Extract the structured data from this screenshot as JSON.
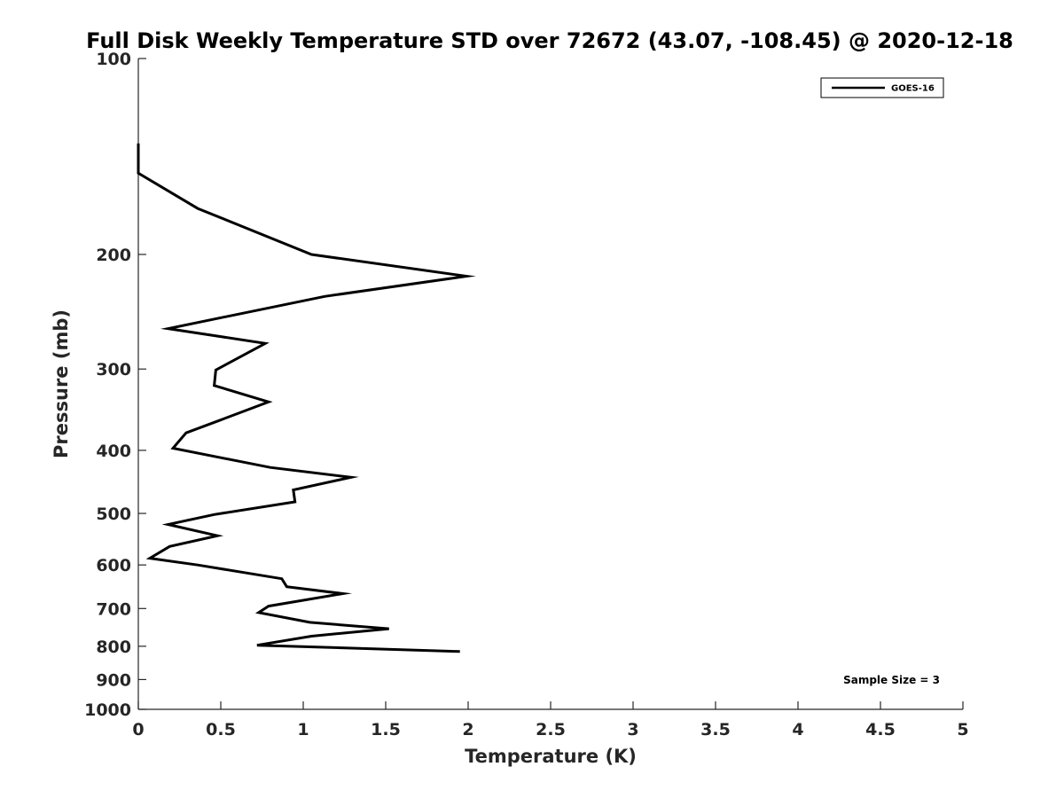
{
  "chart_data": {
    "type": "line",
    "title": "Full Disk Weekly Temperature STD over 72672 (43.07, -108.45) @ 2020-12-18",
    "xlabel": "Temperature (K)",
    "ylabel": "Pressure (mb)",
    "xlim": [
      0,
      5
    ],
    "ylim": [
      100,
      1000
    ],
    "y_scale": "log",
    "y_reversed": true,
    "grid": false,
    "legend_position": "top-right",
    "x_ticks": [
      "0",
      "0.5",
      "1",
      "1.5",
      "2",
      "2.5",
      "3",
      "3.5",
      "4",
      "4.5",
      "5"
    ],
    "y_ticks": [
      "100",
      "200",
      "300",
      "400",
      "500",
      "600",
      "700",
      "800",
      "900",
      "1000"
    ],
    "annotation": "Sample Size = 3",
    "series": [
      {
        "name": "GOES-16",
        "color": "#000000",
        "points": [
          [
            0.0,
            135
          ],
          [
            0.0,
            150
          ],
          [
            0.36,
            170
          ],
          [
            1.05,
            200
          ],
          [
            1.99,
            216
          ],
          [
            1.13,
            232
          ],
          [
            0.18,
            260
          ],
          [
            0.77,
            274
          ],
          [
            0.47,
            301
          ],
          [
            0.46,
            318
          ],
          [
            0.79,
            337
          ],
          [
            0.49,
            360
          ],
          [
            0.29,
            376
          ],
          [
            0.21,
            397
          ],
          [
            0.8,
            425
          ],
          [
            1.29,
            440
          ],
          [
            0.94,
            460
          ],
          [
            0.95,
            480
          ],
          [
            0.46,
            502
          ],
          [
            0.18,
            520
          ],
          [
            0.48,
            541
          ],
          [
            0.19,
            562
          ],
          [
            0.07,
            586
          ],
          [
            0.36,
            600
          ],
          [
            0.87,
            630
          ],
          [
            0.9,
            648
          ],
          [
            1.24,
            664
          ],
          [
            0.79,
            694
          ],
          [
            0.73,
            710
          ],
          [
            1.04,
            735
          ],
          [
            1.52,
            752
          ],
          [
            1.05,
            772
          ],
          [
            0.72,
            797
          ],
          [
            1.95,
            815
          ]
        ]
      }
    ]
  }
}
